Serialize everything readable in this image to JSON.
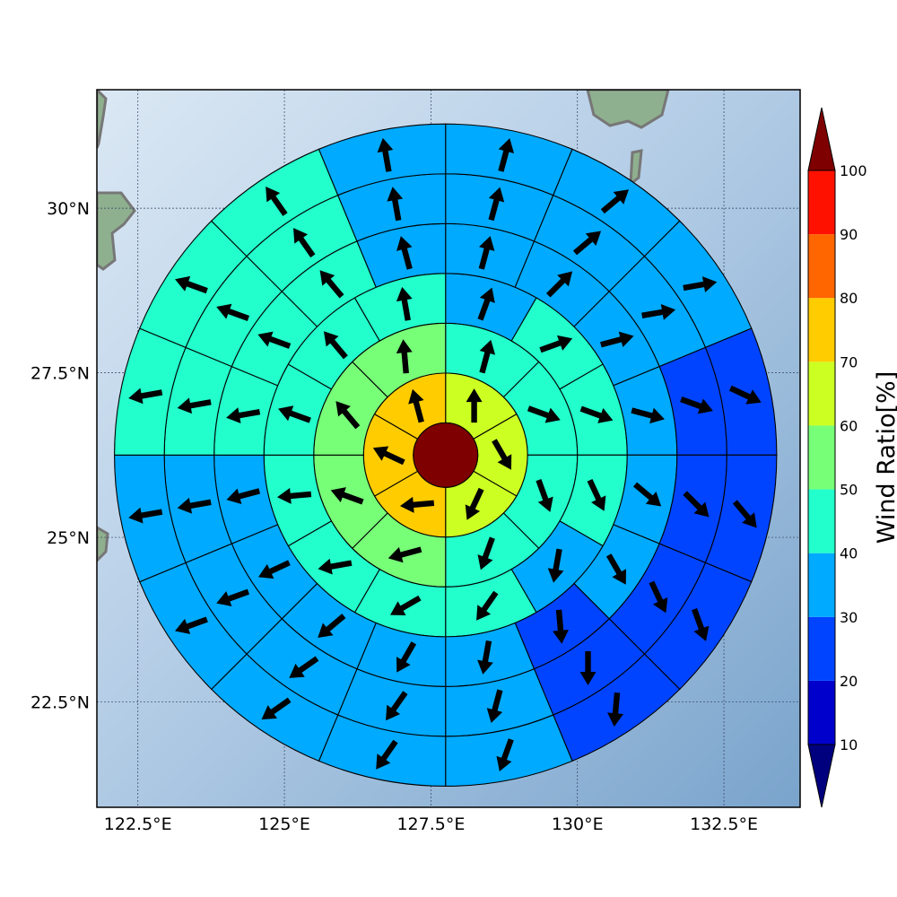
{
  "chart_data": {
    "type": "polar-sector-map",
    "title": "",
    "colorbar": {
      "label": "Wind Ratio[%]",
      "ticks": [
        "10",
        "20",
        "30",
        "40",
        "50",
        "60",
        "70",
        "80",
        "90",
        "100"
      ],
      "bins": [
        {
          "lo": 10,
          "hi": 20,
          "color": "#0000cc"
        },
        {
          "lo": 20,
          "hi": 30,
          "color": "#0044ff"
        },
        {
          "lo": 30,
          "hi": 40,
          "color": "#00aaff"
        },
        {
          "lo": 40,
          "hi": 50,
          "color": "#22ffcc"
        },
        {
          "lo": 50,
          "hi": 60,
          "color": "#77ff77"
        },
        {
          "lo": 60,
          "hi": 70,
          "color": "#ccff22"
        },
        {
          "lo": 70,
          "hi": 80,
          "color": "#ffcc00"
        },
        {
          "lo": 80,
          "hi": 90,
          "color": "#ff6600"
        },
        {
          "lo": 90,
          "hi": 100,
          "color": "#ff1100"
        }
      ],
      "under_color": "#00007f",
      "over_color": "#7f0000",
      "extend": "both"
    },
    "x_ticks": [
      {
        "value": 122.5,
        "label": "122.5°E"
      },
      {
        "value": 125,
        "label": "125°E"
      },
      {
        "value": 127.5,
        "label": "127.5°E"
      },
      {
        "value": 130,
        "label": "130°E"
      },
      {
        "value": 132.5,
        "label": "132.5°E"
      }
    ],
    "y_ticks": [
      {
        "value": 22.5,
        "label": "22.5°N"
      },
      {
        "value": 25,
        "label": "25°N"
      },
      {
        "value": 27.5,
        "label": "27.5°N"
      },
      {
        "value": 30,
        "label": "30°N"
      }
    ],
    "xlim": [
      121.8,
      133.8
    ],
    "ylim": [
      20.9,
      31.8
    ],
    "grid": true,
    "center": {
      "lon": 127.75,
      "lat": 26.25,
      "value": 100
    },
    "rings": [
      {
        "inner_deg": 0.55,
        "outer_deg": 1.4,
        "sector_count": 6,
        "wind_ratio": [
          60,
          65,
          60,
          75,
          75,
          75
        ],
        "arrow_dir_deg": [
          90,
          -60,
          -115,
          -175,
          155,
          105
        ]
      },
      {
        "inner_deg": 1.4,
        "outer_deg": 2.25,
        "sector_count": 8,
        "wind_ratio": [
          45,
          45,
          45,
          45,
          55,
          55,
          55,
          55
        ],
        "arrow_dir_deg": [
          75,
          -20,
          -70,
          -110,
          -165,
          160,
          130,
          95
        ]
      },
      {
        "inner_deg": 2.25,
        "outer_deg": 3.1,
        "sector_count": 12,
        "wind_ratio": [
          35,
          45,
          45,
          45,
          35,
          45,
          45,
          45,
          45,
          45,
          45,
          45
        ],
        "arrow_dir_deg": [
          70,
          20,
          -20,
          -65,
          -100,
          -125,
          -150,
          -170,
          -175,
          160,
          130,
          100
        ]
      },
      {
        "inner_deg": 3.1,
        "outer_deg": 3.95,
        "sector_count": 16,
        "wind_ratio": [
          35,
          35,
          35,
          35,
          35,
          35,
          25,
          35,
          35,
          35,
          35,
          35,
          45,
          45,
          45,
          35
        ],
        "arrow_dir_deg": [
          75,
          45,
          15,
          -15,
          -40,
          -60,
          -85,
          -100,
          -120,
          -140,
          -155,
          -165,
          -170,
          160,
          130,
          105
        ]
      },
      {
        "inner_deg": 3.95,
        "outer_deg": 4.8,
        "sector_count": 16,
        "wind_ratio": [
          35,
          35,
          35,
          25,
          25,
          25,
          25,
          35,
          35,
          35,
          35,
          35,
          45,
          45,
          45,
          35
        ],
        "arrow_dir_deg": [
          75,
          40,
          10,
          -20,
          -45,
          -65,
          -90,
          -105,
          -125,
          -145,
          -160,
          -170,
          -170,
          160,
          125,
          100
        ]
      },
      {
        "inner_deg": 4.8,
        "outer_deg": 5.65,
        "sector_count": 16,
        "wind_ratio": [
          35,
          35,
          35,
          25,
          25,
          25,
          25,
          35,
          35,
          35,
          35,
          35,
          45,
          45,
          45,
          35
        ],
        "arrow_dir_deg": [
          75,
          40,
          10,
          -25,
          -50,
          -70,
          -95,
          -110,
          -125,
          -145,
          -160,
          -170,
          -170,
          160,
          125,
          100
        ]
      }
    ]
  }
}
